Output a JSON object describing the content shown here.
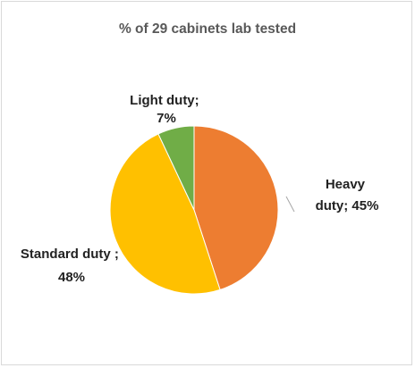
{
  "chart_data": {
    "type": "pie",
    "title": "% of 29 cabinets lab tested",
    "slices": [
      {
        "name": "Heavy duty",
        "value": 45,
        "color": "#ED7D31",
        "label_lines": [
          "Heavy",
          "duty; 45%"
        ]
      },
      {
        "name": "Standard duty",
        "value": 48,
        "color": "#FFC000",
        "label_lines": [
          "Standard duty ;",
          "48%"
        ]
      },
      {
        "name": "Light duty",
        "value": 7,
        "color": "#70AD47",
        "label_lines": [
          "Light duty;",
          "7%"
        ]
      }
    ],
    "legend": "none"
  }
}
